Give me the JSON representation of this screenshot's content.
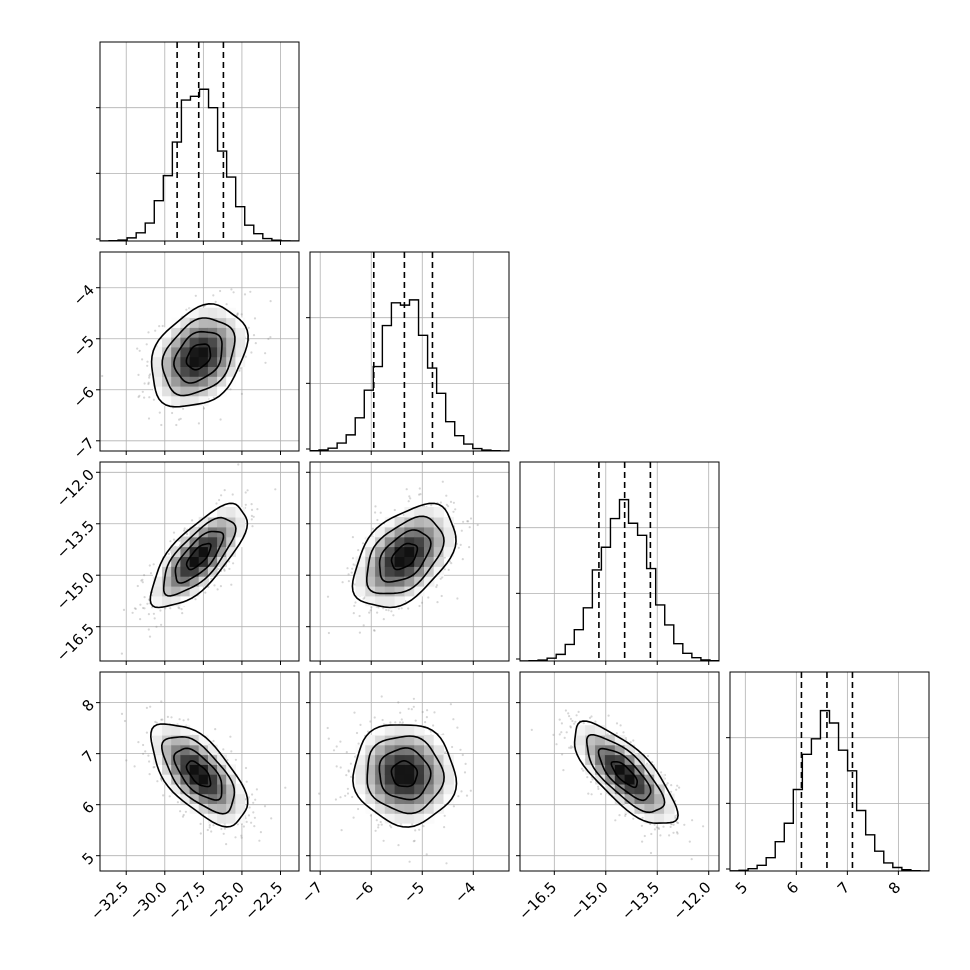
{
  "chart_data": {
    "type": "corner",
    "parameters": [
      {
        "mean": -27.8,
        "sd": 1.55,
        "range": [
          -34.2,
          -21.3
        ],
        "ticks": [
          -32.5,
          -30.0,
          -27.5,
          -25.0,
          -22.5
        ],
        "tick_labels": [
          "−32.5",
          "−30.0",
          "−27.5",
          "−25.0",
          "−22.5"
        ],
        "quantiles": [
          -29.2,
          -27.8,
          -26.2
        ]
      },
      {
        "mean": -5.35,
        "sd": 0.5,
        "range": [
          -7.2,
          -3.3
        ],
        "ticks": [
          -7,
          -6,
          -5,
          -4
        ],
        "tick_labels": [
          "−7",
          "−6",
          "−5",
          "−4"
        ],
        "quantiles": [
          -5.95,
          -5.35,
          -4.8
        ]
      },
      {
        "mean": -14.45,
        "sd": 0.75,
        "range": [
          -17.5,
          -11.7
        ],
        "ticks": [
          -16.5,
          -15.0,
          -13.5,
          -12.0
        ],
        "tick_labels": [
          "−16.5",
          "−15.0",
          "−13.5",
          "−12.0"
        ],
        "quantiles": [
          -15.2,
          -14.45,
          -13.7
        ]
      },
      {
        "mean": 6.6,
        "sd": 0.5,
        "range": [
          4.7,
          8.6
        ],
        "ticks": [
          5,
          6,
          7,
          8
        ],
        "tick_labels": [
          "5",
          "6",
          "7",
          "8"
        ],
        "quantiles": [
          6.1,
          6.6,
          7.1
        ]
      }
    ],
    "correlations": [
      [
        1.0,
        0.3,
        0.72,
        -0.62
      ],
      [
        0.3,
        1.0,
        0.45,
        -0.05
      ],
      [
        0.72,
        0.45,
        1.0,
        -0.75
      ],
      [
        -0.62,
        -0.05,
        -0.75,
        1.0
      ]
    ],
    "contour_levels_sigma": [
      0.5,
      1.0,
      1.5,
      2.0
    ],
    "quantile_line_style": "dashed",
    "grid": true,
    "legend": "none"
  }
}
